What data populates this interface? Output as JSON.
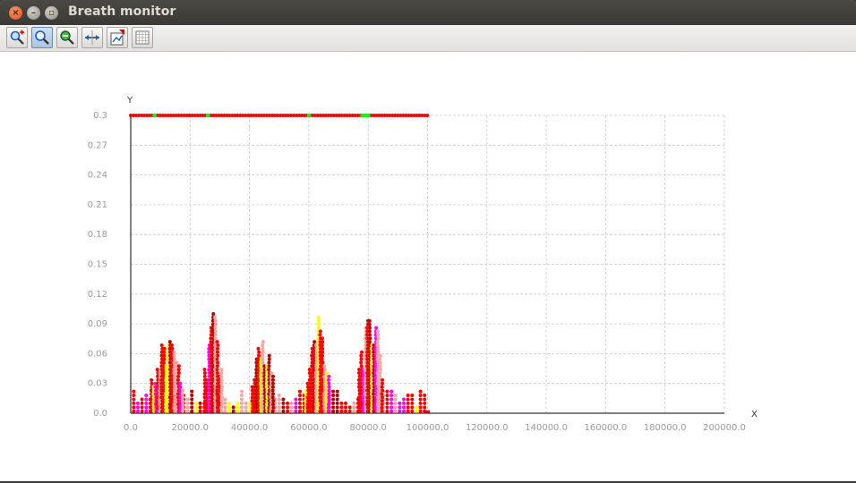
{
  "window": {
    "title": "Breath monitor",
    "buttons": {
      "close_glyph": "×",
      "min_glyph": "–",
      "max_glyph": "▫"
    }
  },
  "toolbar": {
    "items": [
      {
        "icon": "zoom-in-icon",
        "active": false
      },
      {
        "icon": "zoom-icon",
        "active": true
      },
      {
        "icon": "pan-icon",
        "active": false
      },
      {
        "icon": "fit-icon",
        "active": false
      },
      {
        "icon": "export-icon",
        "active": false
      },
      {
        "icon": "grid-icon",
        "active": false
      }
    ]
  },
  "chart_data": {
    "type": "scatter",
    "title": "",
    "xlabel": "X",
    "ylabel": "Y",
    "xlim": [
      0,
      200000
    ],
    "ylim": [
      0,
      0.3
    ],
    "grid": true,
    "x_ticks": [
      "0.0",
      "20000.0",
      "40000.0",
      "60000.0",
      "80000.0",
      "100000.0",
      "120000.0",
      "140000.0",
      "160000.0",
      "180000.0",
      "200000.0"
    ],
    "y_ticks": [
      "0.0",
      "0.03",
      "0.06",
      "0.09",
      "0.12",
      "0.15",
      "0.18",
      "0.21",
      "0.24",
      "0.27",
      "0.3"
    ],
    "colors": {
      "red": "#ff0000",
      "magenta": "#ff00ff",
      "yellow": "#ffff00",
      "pink": "#f4a6a6",
      "green": "#00ff00",
      "darkred": "#c00000"
    },
    "top_line": {
      "y": 0.3,
      "x_start": 0,
      "x_end": 100000,
      "color": "#ff0000",
      "highlight_color": "#00ff00",
      "highlights": [
        8000,
        26000,
        60000,
        78000,
        79000,
        80000
      ]
    },
    "bursts": [
      {
        "x_start": 7000,
        "x_end": 18000,
        "peak": 0.09
      },
      {
        "x_start": 25000,
        "x_end": 31000,
        "peak": 0.115
      },
      {
        "x_start": 41000,
        "x_end": 48000,
        "peak": 0.097
      },
      {
        "x_start": 59000,
        "x_end": 67000,
        "peak": 0.105
      },
      {
        "x_start": 77000,
        "x_end": 85000,
        "peak": 0.13
      }
    ],
    "base_region": {
      "x_start": 0,
      "x_end": 100000,
      "level": 0.02
    }
  }
}
